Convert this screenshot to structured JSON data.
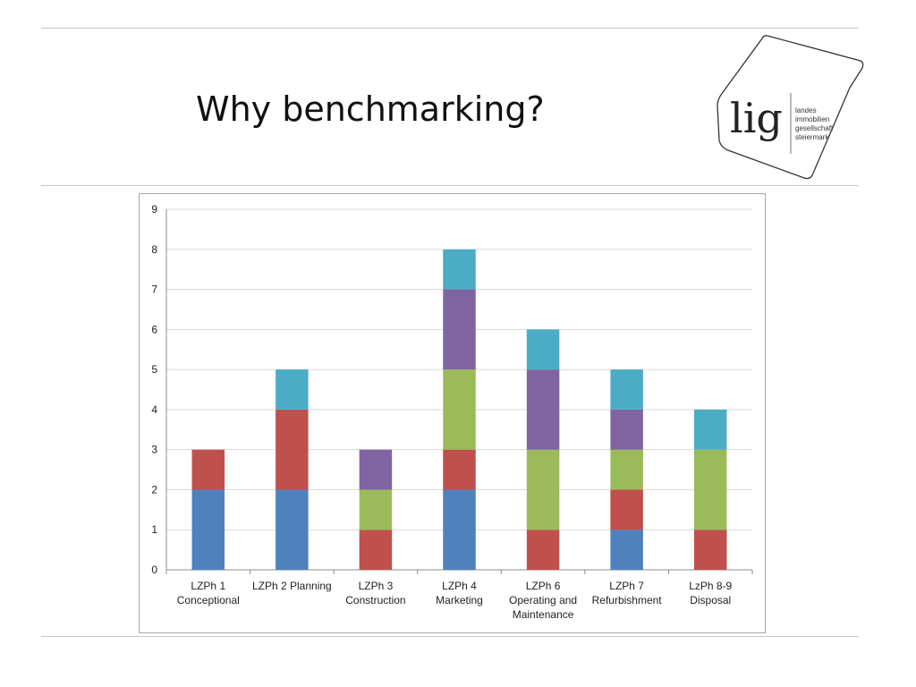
{
  "slide": {
    "title": "Why benchmarking?"
  },
  "logo": {
    "mark": "lig",
    "lines": [
      "landes",
      "immobilien",
      "gesellschaft",
      "steiermark"
    ]
  },
  "chart_data": {
    "type": "bar",
    "stacked": true,
    "categories": [
      [
        "LZPh 1",
        "Conceptional"
      ],
      [
        "LZPh 2 Planning"
      ],
      [
        "LZPh 3",
        "Construction"
      ],
      [
        "LZPh 4",
        "Marketing"
      ],
      [
        "LZPh 6",
        "Operating and",
        "Maintenance"
      ],
      [
        "LZPh 7",
        "Refurbishment"
      ],
      [
        "LzPh 8-9",
        "Disposal"
      ]
    ],
    "series": [
      {
        "color": "#4f81bd",
        "values": [
          2,
          2,
          0,
          2,
          0,
          1,
          0
        ]
      },
      {
        "color": "#c0504d",
        "values": [
          1,
          2,
          1,
          1,
          1,
          1,
          1
        ]
      },
      {
        "color": "#9bbb59",
        "values": [
          0,
          0,
          1,
          2,
          2,
          1,
          2
        ]
      },
      {
        "color": "#8064a2",
        "values": [
          0,
          0,
          1,
          2,
          2,
          1,
          0
        ]
      },
      {
        "color": "#4bacc6",
        "values": [
          0,
          1,
          0,
          1,
          1,
          1,
          1
        ]
      }
    ],
    "ylim": [
      0,
      9
    ],
    "yticks": [
      0,
      1,
      2,
      3,
      4,
      5,
      6,
      7,
      8,
      9
    ],
    "grid": true,
    "legend": "none"
  }
}
